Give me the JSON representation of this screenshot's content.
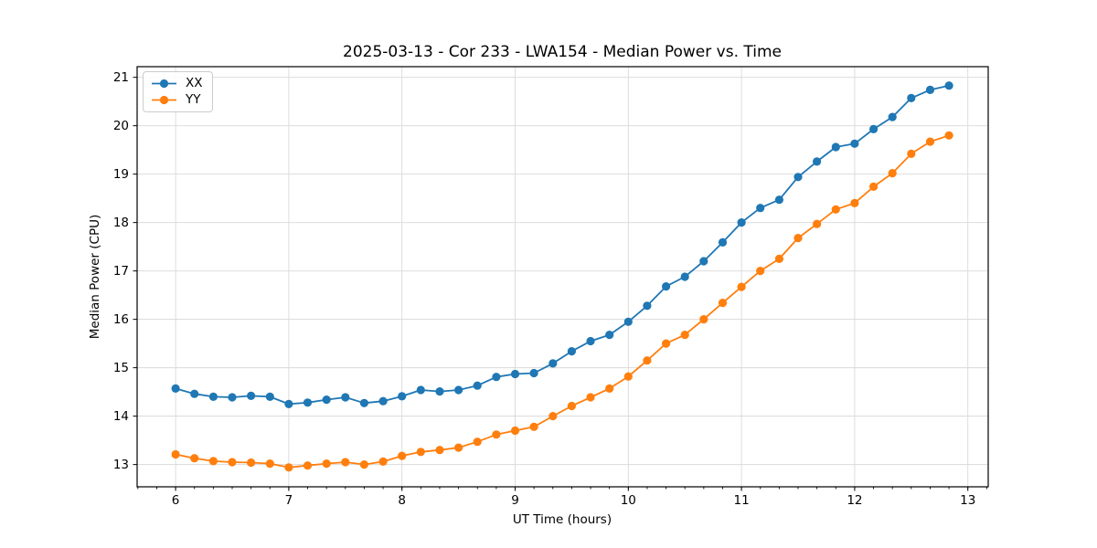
{
  "title": "2025-03-13 - Cor 233 - LWA154 - Median Power vs. Time",
  "chart_data": {
    "type": "line",
    "title": "2025-03-13 - Cor 233 - LWA154 - Median Power vs. Time",
    "xlabel": "UT Time (hours)",
    "ylabel": "Median Power (CPU)",
    "xlim": [
      5.66,
      13.18
    ],
    "ylim": [
      12.54,
      21.22
    ],
    "xticks": [
      6,
      7,
      8,
      9,
      10,
      11,
      12,
      13
    ],
    "yticks": [
      13,
      14,
      15,
      16,
      17,
      18,
      19,
      20,
      21
    ],
    "x_minor_step": 0.166667,
    "grid": true,
    "grid_color": "#d9d9d9",
    "spine_color": "#000000",
    "legend_position": "upper-left",
    "marker": "circle",
    "x": [
      6,
      6.1667,
      6.3333,
      6.5,
      6.6667,
      6.8333,
      7,
      7.1667,
      7.3333,
      7.5,
      7.6667,
      7.8333,
      8,
      8.1667,
      8.3333,
      8.5,
      8.6667,
      8.8333,
      9,
      9.1667,
      9.3333,
      9.5,
      9.6667,
      9.8333,
      10,
      10.1667,
      10.3333,
      10.5,
      10.6667,
      10.8333,
      11,
      11.1667,
      11.3333,
      11.5,
      11.6667,
      11.8333,
      12,
      12.1667,
      12.3333,
      12.5,
      12.6667,
      12.8333
    ],
    "series": [
      {
        "name": "XX",
        "color": "#1f77b4",
        "values": [
          14.57,
          14.46,
          14.4,
          14.39,
          14.42,
          14.4,
          14.25,
          14.28,
          14.34,
          14.39,
          14.27,
          14.31,
          14.41,
          14.54,
          14.51,
          14.54,
          14.63,
          14.81,
          14.87,
          14.89,
          15.09,
          15.34,
          15.55,
          15.68,
          15.95,
          16.28,
          16.68,
          16.88,
          17.2,
          17.59,
          18.0,
          18.3,
          18.47,
          18.94,
          19.26,
          19.56,
          19.63,
          19.93,
          20.18,
          20.57,
          20.74,
          20.83
        ]
      },
      {
        "name": "YY",
        "color": "#ff7f0e",
        "values": [
          13.21,
          13.13,
          13.07,
          13.05,
          13.04,
          13.02,
          12.94,
          12.98,
          13.02,
          13.05,
          13.0,
          13.06,
          13.18,
          13.26,
          13.3,
          13.35,
          13.47,
          13.62,
          13.7,
          13.78,
          14.0,
          14.21,
          14.39,
          14.57,
          14.82,
          15.15,
          15.5,
          15.68,
          16.0,
          16.34,
          16.67,
          17.0,
          17.25,
          17.68,
          17.97,
          18.27,
          18.4,
          18.74,
          19.02,
          19.42,
          19.67,
          19.8
        ]
      }
    ]
  }
}
